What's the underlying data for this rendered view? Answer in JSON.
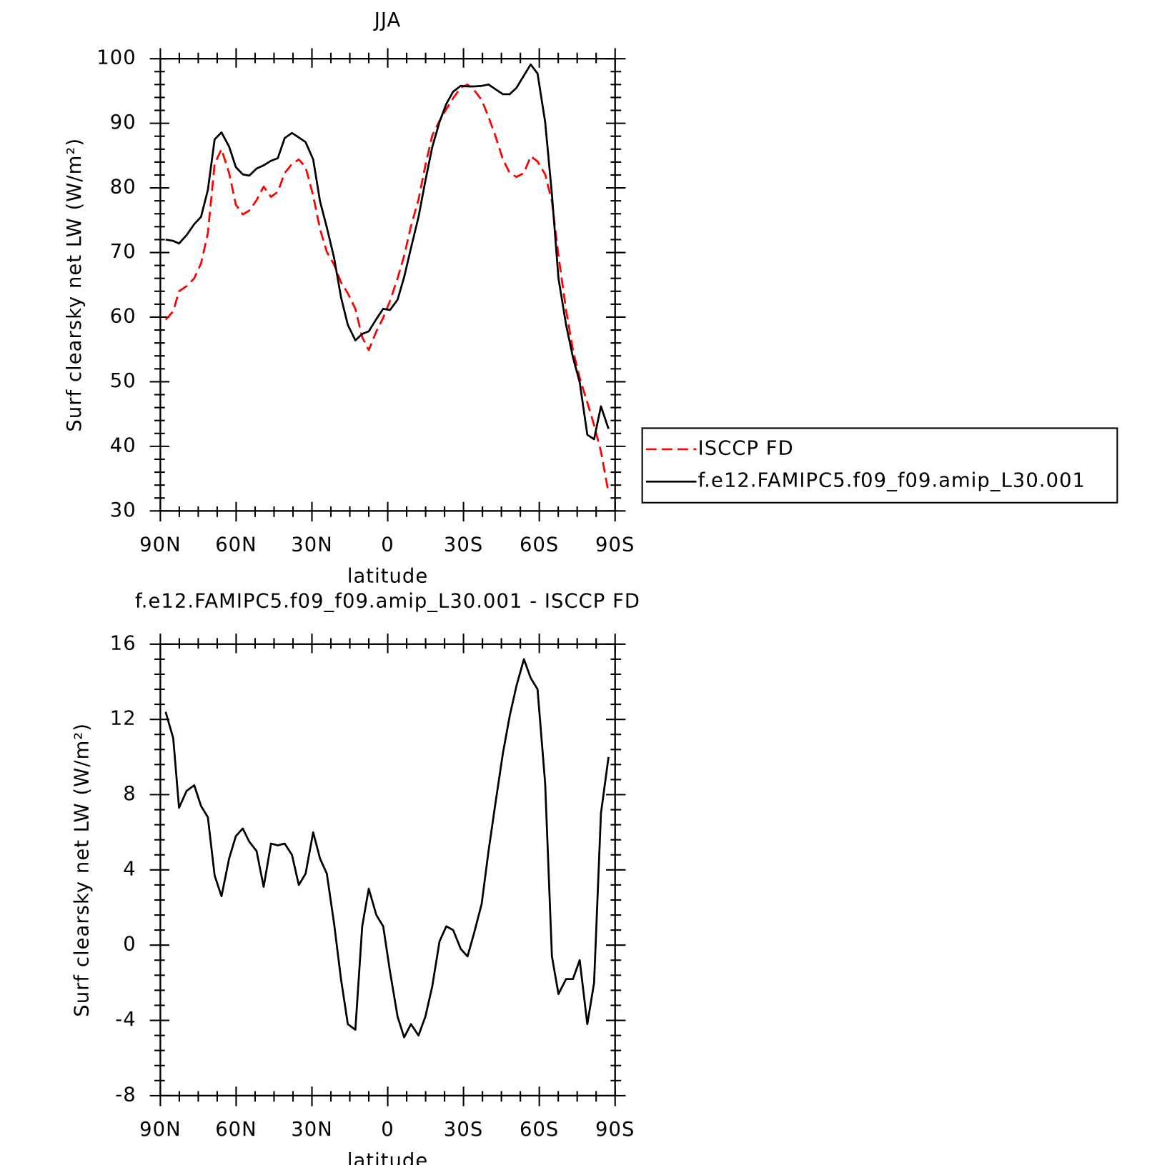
{
  "chart_data": [
    {
      "type": "line",
      "title": "JJA",
      "xlabel": "latitude",
      "ylabel": "Surf clearsky net LW (W/m²)",
      "x": [
        87.9,
        84.9,
        82.6,
        79.6,
        76.6,
        73.9,
        71.2,
        68.5,
        65.8,
        62.8,
        60.1,
        57.4,
        54.8,
        51.9,
        49.1,
        46.2,
        43.5,
        40.8,
        37.9,
        35.2,
        32.5,
        29.5,
        26.8,
        24.1,
        21.2,
        18.5,
        15.8,
        12.8,
        10.1,
        7.5,
        4.5,
        1.8,
        -0.9,
        -3.9,
        -6.5,
        -9.2,
        -12.2,
        -14.9,
        -17.6,
        -20.5,
        -23.2,
        -25.9,
        -28.9,
        -31.6,
        -34.3,
        -37.2,
        -39.9,
        -42.6,
        -45.6,
        -48.3,
        -51.0,
        -53.9,
        -56.6,
        -59.3,
        -62.3,
        -65.0,
        -67.6,
        -70.6,
        -73.3,
        -76.0,
        -79.0,
        -81.7,
        -84.4,
        -87.4
      ],
      "series": [
        {
          "name": "ISCCP FD",
          "color": "#ff0000",
          "dashed": true,
          "values": [
            59.6,
            60.9,
            64.0,
            64.8,
            66.0,
            68.3,
            73.0,
            83.7,
            86.0,
            82.3,
            77.4,
            75.9,
            76.5,
            78.1,
            80.2,
            78.6,
            79.4,
            82.3,
            83.7,
            84.4,
            83.2,
            78.8,
            73.6,
            70.1,
            68.1,
            65.4,
            63.7,
            61.3,
            56.9,
            54.9,
            57.8,
            59.9,
            62.5,
            66.0,
            69.5,
            74.1,
            78.2,
            83.5,
            88.1,
            90.4,
            92.2,
            93.9,
            95.5,
            96.0,
            95.1,
            93.6,
            91.0,
            88.1,
            84.4,
            82.3,
            81.7,
            82.3,
            84.9,
            84.1,
            82.1,
            77.9,
            69.5,
            61.1,
            54.9,
            50.6,
            46.8,
            43.3,
            39.2,
            32.8
          ]
        },
        {
          "name": "f.e12.FAMIPC5.f09_f09.amip_L30.001",
          "color": "#000000",
          "dashed": false,
          "values": [
            72.0,
            71.8,
            71.4,
            72.7,
            74.4,
            75.5,
            79.7,
            87.5,
            88.6,
            86.4,
            83.2,
            82.1,
            81.9,
            83.0,
            83.5,
            84.2,
            84.6,
            87.7,
            88.5,
            87.8,
            87.1,
            84.4,
            77.9,
            73.9,
            69.1,
            63.1,
            58.8,
            56.4,
            57.4,
            57.8,
            59.7,
            61.3,
            61.1,
            62.7,
            66.2,
            70.7,
            75.5,
            81.1,
            86.3,
            90.2,
            93.0,
            94.9,
            95.8,
            95.7,
            95.7,
            95.8,
            96.0,
            95.3,
            94.5,
            94.5,
            95.5,
            97.4,
            99.1,
            97.7,
            90.2,
            79.0,
            66.0,
            58.8,
            53.8,
            49.9,
            41.8,
            41.1,
            46.2,
            42.7
          ]
        }
      ],
      "xlim": [
        90,
        -90
      ],
      "xticks": [
        {
          "value": 90,
          "label": "90N"
        },
        {
          "value": 60,
          "label": "60N"
        },
        {
          "value": 30,
          "label": "30N"
        },
        0,
        {
          "value": -30,
          "label": "30S"
        },
        {
          "value": -60,
          "label": "60S"
        },
        {
          "value": -90,
          "label": "90S"
        }
      ],
      "ylim": [
        30,
        100
      ],
      "yticks": [
        30,
        40,
        50,
        60,
        70,
        80,
        90,
        100
      ],
      "legend": "right"
    },
    {
      "type": "line",
      "title": "f.e12.FAMIPC5.f09_f09.amip_L30.001 - ISCCP FD",
      "xlabel": "latitude",
      "ylabel": "Surf clearsky net LW (W/m²)",
      "x": [
        87.9,
        84.9,
        82.6,
        79.6,
        76.6,
        73.9,
        71.2,
        68.5,
        65.8,
        62.8,
        60.1,
        57.4,
        54.8,
        51.9,
        49.1,
        46.2,
        43.5,
        40.8,
        37.9,
        35.2,
        32.5,
        29.5,
        26.8,
        24.1,
        21.2,
        18.5,
        15.8,
        12.8,
        10.1,
        7.5,
        4.5,
        1.8,
        -0.9,
        -3.9,
        -6.5,
        -9.2,
        -12.2,
        -14.9,
        -17.6,
        -20.5,
        -23.2,
        -25.9,
        -28.9,
        -31.6,
        -34.3,
        -37.2,
        -39.9,
        -42.6,
        -45.6,
        -48.3,
        -51.0,
        -53.9,
        -56.6,
        -59.3,
        -62.3,
        -65.0,
        -67.6,
        -70.6,
        -73.3,
        -76.0,
        -79.0,
        -81.7,
        -84.4,
        -87.4
      ],
      "values": [
        12.4,
        11.0,
        7.3,
        8.2,
        8.5,
        7.4,
        6.8,
        3.7,
        2.6,
        4.6,
        5.8,
        6.2,
        5.5,
        5.0,
        3.1,
        5.4,
        5.3,
        5.4,
        4.8,
        3.2,
        3.8,
        6.0,
        4.6,
        3.8,
        1.1,
        -1.8,
        -4.2,
        -4.5,
        1.0,
        3.0,
        1.6,
        1.0,
        -1.4,
        -3.8,
        -4.9,
        -4.2,
        -4.8,
        -3.8,
        -2.2,
        0.2,
        1.0,
        0.8,
        -0.2,
        -0.6,
        0.7,
        2.2,
        5.0,
        7.5,
        10.2,
        12.2,
        13.8,
        15.2,
        14.2,
        13.6,
        8.6,
        -0.6,
        -2.6,
        -1.8,
        -1.8,
        -0.8,
        -4.2,
        -2.0,
        7.0,
        10.0
      ],
      "color": "#000000",
      "xlim": [
        90,
        -90
      ],
      "xticks": [
        {
          "value": 90,
          "label": "90N"
        },
        {
          "value": 60,
          "label": "60N"
        },
        {
          "value": 30,
          "label": "30N"
        },
        0,
        {
          "value": -30,
          "label": "30S"
        },
        {
          "value": -60,
          "label": "60S"
        },
        {
          "value": -90,
          "label": "90S"
        }
      ],
      "ylim": [
        -8,
        16
      ],
      "yticks": [
        -8,
        -4,
        0,
        4,
        8,
        12,
        16
      ]
    }
  ]
}
